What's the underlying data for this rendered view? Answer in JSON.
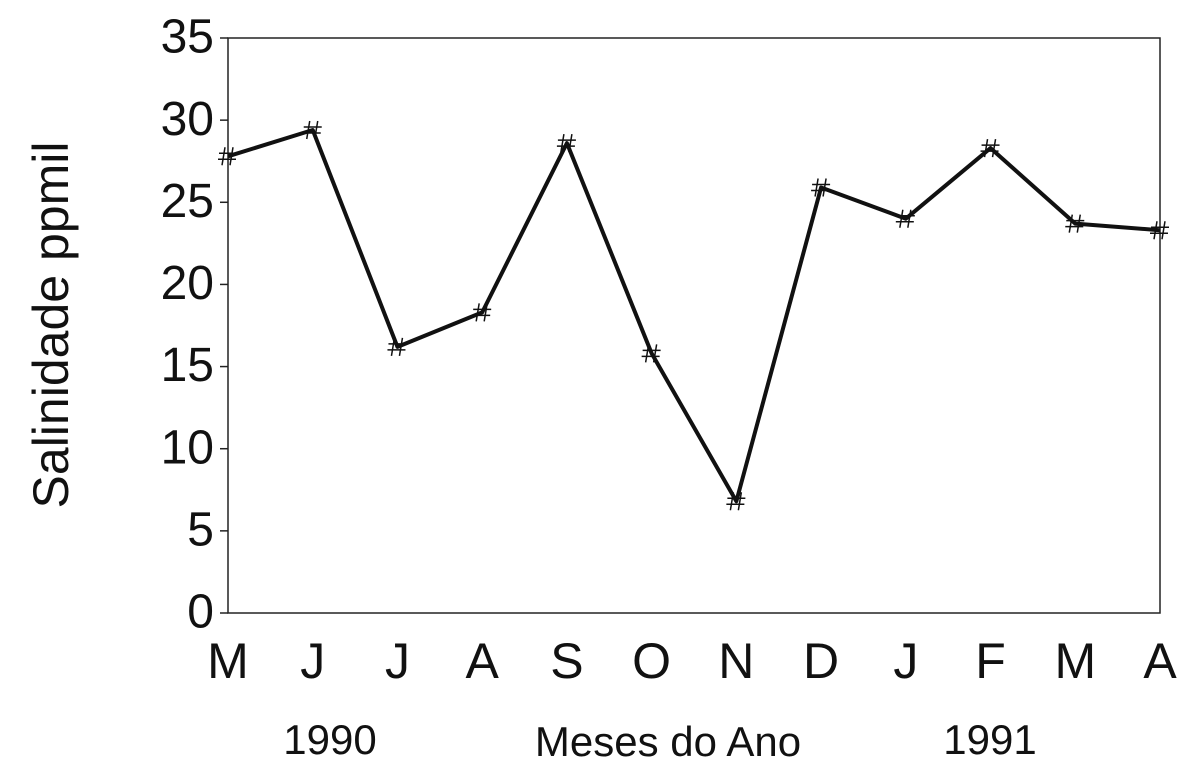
{
  "chart_data": {
    "type": "line",
    "y_label": "Salinidade ppmil",
    "x_label": "Meses do Ano",
    "annotations": [
      "1990",
      "1991"
    ],
    "categories": [
      "M",
      "J",
      "J",
      "A",
      "S",
      "O",
      "N",
      "D",
      "J",
      "F",
      "M",
      "A"
    ],
    "values": [
      27.8,
      29.4,
      16.2,
      18.3,
      28.6,
      15.8,
      6.8,
      25.9,
      24.0,
      28.3,
      23.7,
      23.3
    ],
    "color": "#111111",
    "ylim": [
      0,
      35
    ],
    "yticks": [
      0,
      5,
      10,
      15,
      20,
      25,
      30,
      35
    ],
    "grid": false
  }
}
